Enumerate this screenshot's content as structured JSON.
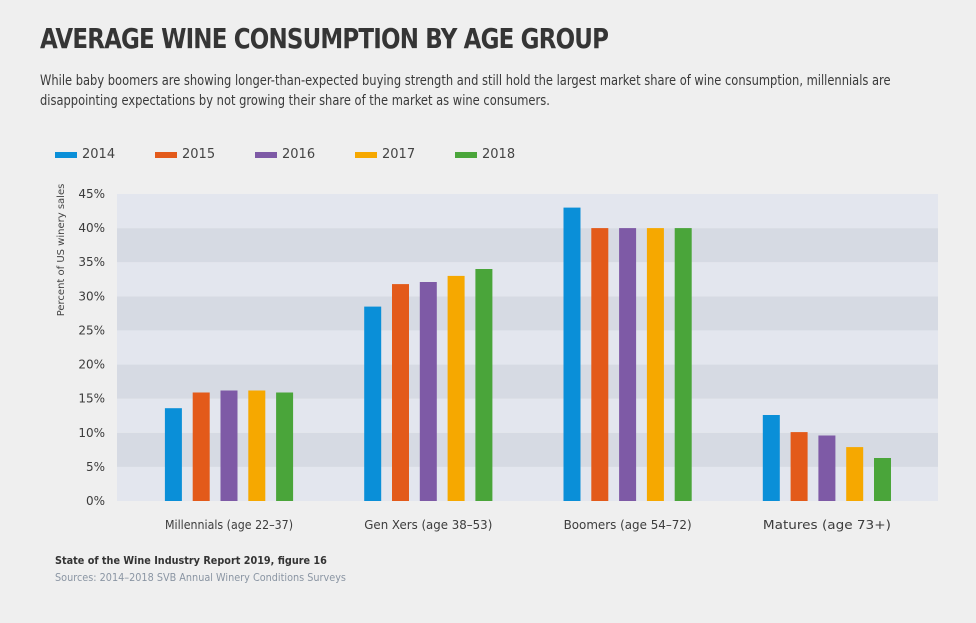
{
  "title": "AVERAGE WINE CONSUMPTION BY AGE GROUP",
  "subtitle": "While baby boomers are showing longer-than-expected buying strength and still hold the largest market share of wine consumption, millennials are disappointing expectations by not growing their share of the market as wine consumers.",
  "source_title": "State of the Wine Industry Report 2019, figure 16",
  "source_detail": "Sources: 2014–2018 SVB Annual Winery Conditions Surveys",
  "chart_data": {
    "type": "bar",
    "title": "AVERAGE WINE CONSUMPTION BY AGE GROUP",
    "xlabel": "",
    "ylabel": "Percent of US winery sales",
    "ylim": [
      0,
      45
    ],
    "yticks": [
      0,
      5,
      10,
      15,
      20,
      25,
      30,
      35,
      40,
      45
    ],
    "ytick_labels": [
      "0%",
      "5%",
      "10%",
      "15%",
      "20%",
      "25%",
      "30%",
      "35%",
      "40%",
      "45%"
    ],
    "grid": "alternating horizontal bands",
    "legend_position": "top-left",
    "categories": [
      "Millennials (age 22–37)",
      "Gen Xers (age 38–53)",
      "Boomers (age 54–72)",
      "Matures (age 73+)"
    ],
    "series": [
      {
        "name": "2014",
        "color": "#0a8fd8",
        "values": [
          13.6,
          28.5,
          43.0,
          12.6
        ]
      },
      {
        "name": "2015",
        "color": "#e35a1a",
        "values": [
          15.9,
          31.8,
          40.0,
          10.1
        ]
      },
      {
        "name": "2016",
        "color": "#7e5aa6",
        "values": [
          16.2,
          32.1,
          40.0,
          9.6
        ]
      },
      {
        "name": "2017",
        "color": "#f6a800",
        "values": [
          16.2,
          33.0,
          40.0,
          7.9
        ]
      },
      {
        "name": "2018",
        "color": "#4aa53a",
        "values": [
          15.9,
          34.0,
          40.0,
          6.3
        ]
      }
    ]
  }
}
